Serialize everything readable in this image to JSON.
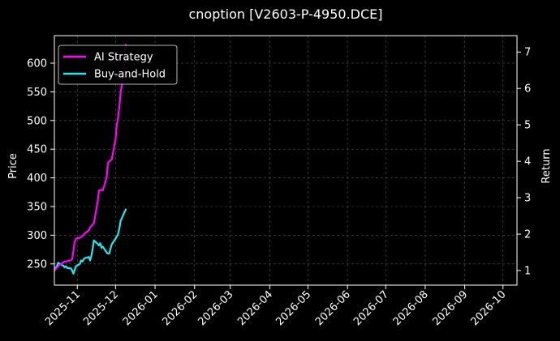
{
  "chart_data": {
    "type": "line",
    "title": "cnoption [V2603-P-4950.DCE]",
    "ylabel_left": "Price",
    "ylabel_right": "Return",
    "grid": true,
    "legend_placement": "top-left",
    "xlim": [
      "2025-10-14",
      "2026-10-12"
    ],
    "ylim_left": [
      213,
      648
    ],
    "ylim_right": [
      0.6,
      7.45
    ],
    "x_ticks": [
      "2025-11",
      "2025-12",
      "2026-01",
      "2026-02",
      "2026-03",
      "2026-04",
      "2026-05",
      "2026-06",
      "2026-07",
      "2026-08",
      "2026-09",
      "2026-10"
    ],
    "y_ticks_left": [
      250,
      300,
      350,
      400,
      450,
      500,
      550,
      600
    ],
    "y_ticks_right": [
      1,
      2,
      3,
      4,
      5,
      6,
      7
    ],
    "colors": {
      "background": "#000000",
      "grid": "#555555",
      "ai_strategy": "#ff00ff",
      "buy_and_hold": "#22e8f0"
    },
    "series": [
      {
        "name": "AI Strategy",
        "axis": "right",
        "color": "#ff00ff",
        "points": [
          [
            "2025-10-14",
            1.0
          ],
          [
            "2025-10-15",
            1.04
          ],
          [
            "2025-10-16",
            1.08
          ],
          [
            "2025-10-17",
            1.12
          ],
          [
            "2025-10-20",
            1.2
          ],
          [
            "2025-10-21",
            1.22
          ],
          [
            "2025-10-22",
            1.25
          ],
          [
            "2025-10-23",
            1.24
          ],
          [
            "2025-10-24",
            1.26
          ],
          [
            "2025-10-27",
            1.28
          ],
          [
            "2025-10-28",
            1.32
          ],
          [
            "2025-10-29",
            1.55
          ],
          [
            "2025-10-30",
            1.8
          ],
          [
            "2025-10-31",
            1.88
          ],
          [
            "2025-11-03",
            1.9
          ],
          [
            "2025-11-04",
            1.92
          ],
          [
            "2025-11-05",
            1.95
          ],
          [
            "2025-11-06",
            1.98
          ],
          [
            "2025-11-07",
            2.02
          ],
          [
            "2025-11-10",
            2.1
          ],
          [
            "2025-11-11",
            2.18
          ],
          [
            "2025-11-12",
            2.22
          ],
          [
            "2025-11-13",
            2.26
          ],
          [
            "2025-11-14",
            2.3
          ],
          [
            "2025-11-17",
            2.9
          ],
          [
            "2025-11-18",
            3.2
          ],
          [
            "2025-11-19",
            3.2
          ],
          [
            "2025-11-20",
            3.22
          ],
          [
            "2025-11-21",
            3.2
          ],
          [
            "2025-11-24",
            3.55
          ],
          [
            "2025-11-25",
            3.95
          ],
          [
            "2025-11-26",
            4.0
          ],
          [
            "2025-11-27",
            4.02
          ],
          [
            "2025-11-28",
            4.05
          ],
          [
            "2025-12-01",
            4.6
          ],
          [
            "2025-12-02",
            5.0
          ],
          [
            "2025-12-03",
            5.2
          ],
          [
            "2025-12-04",
            5.5
          ],
          [
            "2025-12-05",
            5.9
          ],
          [
            "2025-12-08",
            6.5
          ],
          [
            "2025-12-09",
            7.2
          ]
        ]
      },
      {
        "name": "Buy-and-Hold",
        "axis": "left",
        "color": "#22e8f0",
        "points": [
          [
            "2025-10-14",
            238
          ],
          [
            "2025-10-15",
            243
          ],
          [
            "2025-10-16",
            246
          ],
          [
            "2025-10-17",
            252
          ],
          [
            "2025-10-20",
            248
          ],
          [
            "2025-10-21",
            247
          ],
          [
            "2025-10-22",
            244
          ],
          [
            "2025-10-23",
            246
          ],
          [
            "2025-10-24",
            243
          ],
          [
            "2025-10-27",
            242
          ],
          [
            "2025-10-28",
            238
          ],
          [
            "2025-10-29",
            233
          ],
          [
            "2025-10-30",
            240
          ],
          [
            "2025-10-31",
            246
          ],
          [
            "2025-11-03",
            250
          ],
          [
            "2025-11-04",
            256
          ],
          [
            "2025-11-05",
            254
          ],
          [
            "2025-11-06",
            258
          ],
          [
            "2025-11-07",
            260
          ],
          [
            "2025-11-10",
            262
          ],
          [
            "2025-11-11",
            256
          ],
          [
            "2025-11-12",
            264
          ],
          [
            "2025-11-13",
            276
          ],
          [
            "2025-11-14",
            291
          ],
          [
            "2025-11-17",
            285
          ],
          [
            "2025-11-18",
            282
          ],
          [
            "2025-11-19",
            286
          ],
          [
            "2025-11-20",
            278
          ],
          [
            "2025-11-21",
            280
          ],
          [
            "2025-11-24",
            270
          ],
          [
            "2025-11-25",
            268
          ],
          [
            "2025-11-26",
            268
          ],
          [
            "2025-11-27",
            276
          ],
          [
            "2025-11-28",
            284
          ],
          [
            "2025-12-01",
            294
          ],
          [
            "2025-12-02",
            298
          ],
          [
            "2025-12-03",
            302
          ],
          [
            "2025-12-04",
            312
          ],
          [
            "2025-12-05",
            325
          ],
          [
            "2025-12-08",
            340
          ],
          [
            "2025-12-09",
            345
          ]
        ]
      }
    ]
  }
}
